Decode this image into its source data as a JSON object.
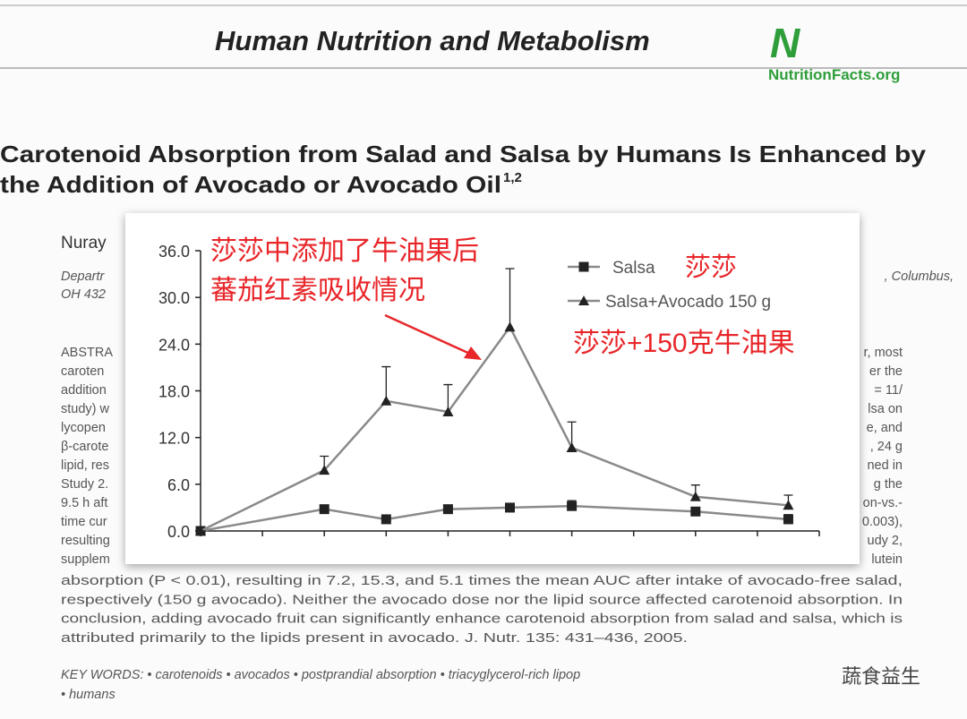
{
  "document": {
    "header": {
      "title": "Human Nutrition and Metabolism",
      "logo_mark": "N",
      "logo_text": "NutritionFacts.org"
    },
    "paper_title": {
      "line1": "Carotenoid Absorption from Salad and Salsa by Humans Is Enhanced by",
      "line2": "the Addition of Avocado or Avocado Oil",
      "superscript": "1,2"
    },
    "author": "Nuray",
    "affiliation": {
      "left1": "Departr",
      "left2": "OH 432",
      "right": ", Columbus,"
    },
    "abstract_left": [
      "ABSTRA",
      "caroten",
      "addition",
      "study) w",
      "lycopen",
      "β-carote",
      "lipid, res",
      "Study 2.",
      "9.5 h aft",
      "time cur",
      "resulting",
      "supplem"
    ],
    "abstract_right": [
      "r, most",
      "er the",
      "= 11/",
      "lsa on",
      "e, and",
      ", 24 g",
      "ned in",
      "g the",
      "on-vs.-",
      "0.003),",
      "udy 2,",
      "lutein"
    ],
    "abstract_lines": [
      "absorption (P < 0.01), resulting in 7.2, 15.3, and 5.1 times the mean AUC after intake of avocado-free salad,",
      "respectively (150 g avocado). Neither the avocado dose nor the lipid source affected carotenoid absorption. In",
      "conclusion, adding avocado fruit can significantly enhance carotenoid absorption from salad and salsa, which is",
      "attributed primarily to the lipids present in avocado.   J. Nutr. 135: 431–436, 2005."
    ],
    "key_words": [
      "KEY WORDS:  •  carotenoids  •  avocados  •  postprandial absorption  •  triacyglycerol-rich lipop",
      "•  humans"
    ],
    "watermark": "蔬食益生"
  },
  "chart_data": {
    "type": "line",
    "x": [
      0,
      2,
      3,
      4,
      5,
      6,
      8,
      9.5
    ],
    "xlim": [
      0,
      10
    ],
    "xticks": [
      0,
      1,
      2,
      3,
      4,
      5,
      6,
      7,
      8,
      9,
      10
    ],
    "ylim": [
      0,
      36
    ],
    "yticks": [
      {
        "value": 0,
        "label": "0.0"
      },
      {
        "value": 6,
        "label": "6.0"
      },
      {
        "value": 12,
        "label": "12.0"
      },
      {
        "value": 18,
        "label": "18.0"
      },
      {
        "value": 24,
        "label": "24.0"
      },
      {
        "value": 30,
        "label": "30.0"
      },
      {
        "value": 36,
        "label": "36.0"
      }
    ],
    "series": [
      {
        "name": "Salsa",
        "note": "莎莎",
        "marker": "square",
        "color": "#222222",
        "line_color": "#8a8a8a",
        "values": [
          0,
          2.8,
          1.5,
          2.8,
          3.0,
          3.2,
          2.5,
          1.5
        ],
        "errors": [
          0,
          0.5,
          0.4,
          0.4,
          0.5,
          0.7,
          0.5,
          0.6
        ]
      },
      {
        "name": "Salsa+Avocado 150 g",
        "note": "莎莎+150克牛油果",
        "marker": "triangle",
        "color": "#222222",
        "line_color": "#8a8a8a",
        "values": [
          0,
          7.8,
          16.7,
          15.3,
          26.2,
          10.7,
          4.4,
          3.3
        ],
        "errors": [
          0,
          1.8,
          4.4,
          3.5,
          7.5,
          3.3,
          1.5,
          1.3
        ]
      }
    ],
    "annotation": [
      "莎莎中添加了牛油果后",
      "蕃茄红素吸收情况"
    ],
    "annotation_color": "#e8262a"
  }
}
